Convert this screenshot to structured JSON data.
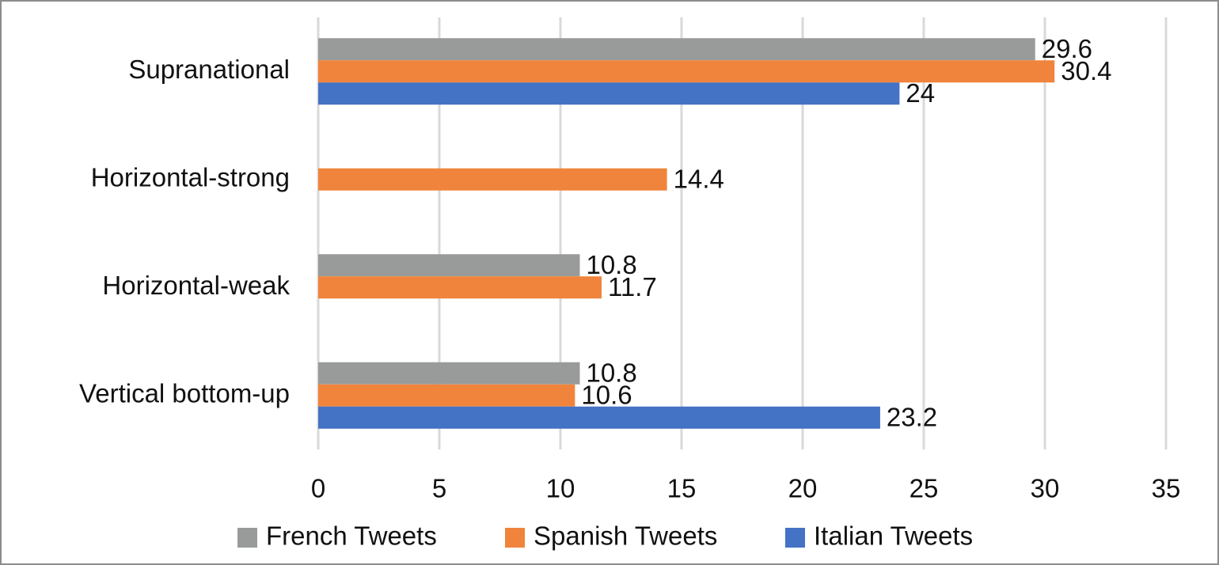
{
  "chart_data": {
    "type": "hbar",
    "categories": [
      "Supranational",
      "Horizontal-strong",
      "Horizontal-weak",
      "Vertical bottom-up"
    ],
    "series": [
      {
        "name": "French Tweets",
        "color": "#999b9b",
        "values": [
          29.6,
          null,
          10.8,
          10.8
        ]
      },
      {
        "name": "Spanish Tweets",
        "color": "#f0843c",
        "values": [
          30.4,
          14.4,
          11.7,
          10.6
        ]
      },
      {
        "name": "Italian Tweets",
        "color": "#4472c4",
        "values": [
          24,
          null,
          null,
          23.2
        ]
      }
    ],
    "xlim": [
      0,
      35
    ],
    "xticks": [
      0,
      5,
      10,
      15,
      20,
      25,
      30,
      35
    ],
    "grid": true,
    "legend": "bottom"
  }
}
